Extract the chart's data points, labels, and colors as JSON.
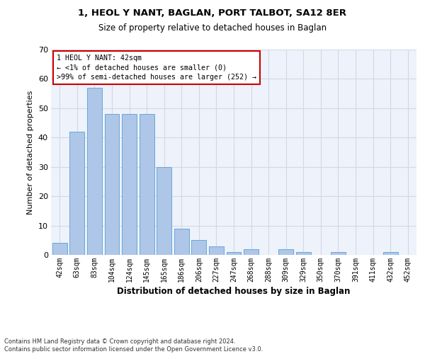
{
  "title1": "1, HEOL Y NANT, BAGLAN, PORT TALBOT, SA12 8ER",
  "title2": "Size of property relative to detached houses in Baglan",
  "xlabel": "Distribution of detached houses by size in Baglan",
  "ylabel": "Number of detached properties",
  "categories": [
    "42sqm",
    "63sqm",
    "83sqm",
    "104sqm",
    "124sqm",
    "145sqm",
    "165sqm",
    "186sqm",
    "206sqm",
    "227sqm",
    "247sqm",
    "268sqm",
    "288sqm",
    "309sqm",
    "329sqm",
    "350sqm",
    "370sqm",
    "391sqm",
    "411sqm",
    "432sqm",
    "452sqm"
  ],
  "values": [
    4,
    42,
    57,
    48,
    48,
    48,
    30,
    9,
    5,
    3,
    1,
    2,
    0,
    2,
    1,
    0,
    1,
    0,
    0,
    1,
    0
  ],
  "bar_color": "#aec6e8",
  "bar_edge_color": "#5a9fd4",
  "ylim": [
    0,
    70
  ],
  "yticks": [
    0,
    10,
    20,
    30,
    40,
    50,
    60,
    70
  ],
  "annotation_title": "1 HEOL Y NANT: 42sqm",
  "annotation_line1": "← <1% of detached houses are smaller (0)",
  "annotation_line2": ">99% of semi-detached houses are larger (252) →",
  "annotation_box_color": "#ffffff",
  "annotation_box_edge": "#cc0000",
  "footer": "Contains HM Land Registry data © Crown copyright and database right 2024.\nContains public sector information licensed under the Open Government Licence v3.0.",
  "grid_color": "#d0d8e8",
  "background_color": "#eef2fa"
}
